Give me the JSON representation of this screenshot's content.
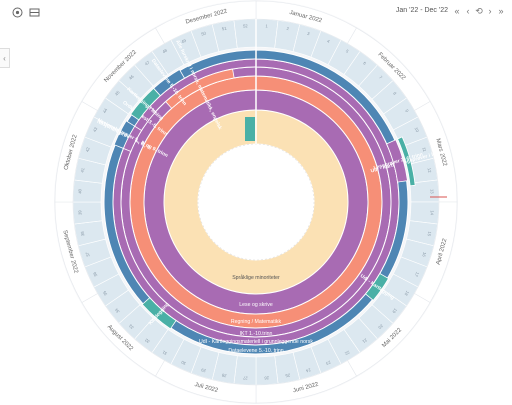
{
  "toolbar": {
    "wheel_view_icon": "circle-view-icon",
    "list_view_icon": "list-view-icon",
    "date_range": "Jan '22 - Dec '22",
    "nav": {
      "first": "«",
      "prev": "‹",
      "reset": "⟲",
      "next": "›",
      "last": "»"
    }
  },
  "left_panel_toggle": "‹",
  "wheel": {
    "months": [
      "Januar 2022",
      "Februar 2022",
      "Mars 2022",
      "April 2022",
      "Mai 2022",
      "Juni 2022",
      "Juli 2022",
      "August 2022",
      "September 2022",
      "Oktober 2022",
      "November 2022",
      "Desember 2022"
    ],
    "weeks": [
      "1",
      "2",
      "3",
      "4",
      "5",
      "6",
      "7",
      "8",
      "9",
      "10",
      "11",
      "12",
      "13",
      "14",
      "15",
      "16",
      "17",
      "18",
      "19",
      "20",
      "21",
      "22",
      "23",
      "24",
      "25",
      "26",
      "27",
      "28",
      "29",
      "30",
      "31",
      "32",
      "33",
      "34",
      "35",
      "36",
      "37",
      "38",
      "39",
      "40",
      "41",
      "42",
      "43",
      "44",
      "45",
      "46",
      "47",
      "48",
      "49",
      "50",
      "51",
      "52"
    ],
    "rings": [
      {
        "label": "Språklige minoriteter",
        "color": "#fbe1b4"
      },
      {
        "label": "Lese og skrive",
        "color": "#a86bb3"
      },
      {
        "label": "Regning / Matematikk",
        "color": "#f68f77"
      },
      {
        "label": "IKT 1.-10.trinn",
        "color": "#a86bb3"
      },
      {
        "label": "UdI - Kartleggingsmateriell i grunnleggende norsk",
        "color": "#a86bb3"
      },
      {
        "label": "Dataelevene 5.-10. trinn",
        "color": "#4e86b4"
      }
    ],
    "segments": [
      {
        "label": "UdI - Kartleggingsprøver i lesing",
        "color": "#4ab0a6"
      },
      {
        "label": "Leseprøver 2.-6. trinn",
        "color": "#a86bb3"
      },
      {
        "label": "Nasjonale prøver 5., 8., 9.",
        "color": "#4e86b4"
      },
      {
        "label": "Nasjonale prøver 5., 8. og 9. trinn",
        "color": "#a86bb3"
      },
      {
        "label": "Ordkjedetest 3.-5. trinn",
        "color": "#a86bb3"
      },
      {
        "label": "Kartlegging",
        "color": "#4ab0a6"
      },
      {
        "label": "Alle forskrift i norsk, matematikk, engelsk",
        "color": "#f68f77"
      },
      {
        "label": "Dataelevene 5.-10. trinn",
        "color": "#4e86b4"
      },
      {
        "label": "UdI - Kartlegging",
        "color": "#4ab0a6"
      },
      {
        "label": "Kartlegging i lesing",
        "color": "#4ab0a6"
      }
    ]
  }
}
